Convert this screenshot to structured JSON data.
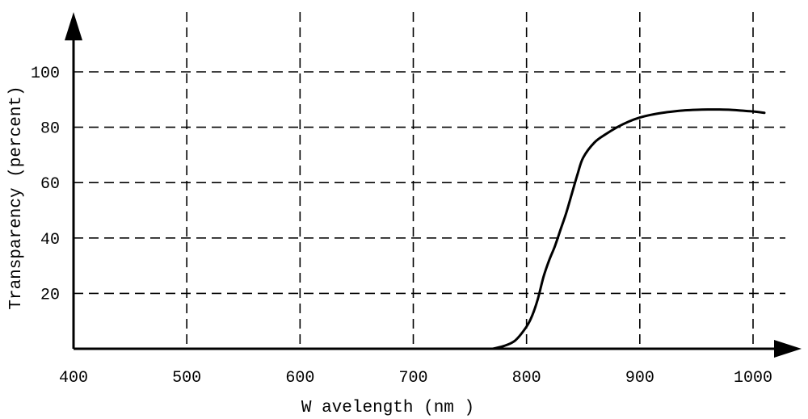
{
  "chart_data": {
    "type": "line",
    "title": "",
    "xlabel": "W avelength (nm )",
    "ylabel": "Transparency (percent)",
    "xlim": [
      400,
      1000
    ],
    "ylim": [
      0,
      100
    ],
    "xticks": [
      400,
      500,
      600,
      700,
      800,
      900,
      1000
    ],
    "xtick_labels": [
      "400",
      "500",
      "600",
      "700",
      "800",
      "900",
      "1000"
    ],
    "yticks": [
      20,
      40,
      60,
      80,
      100
    ],
    "ytick_labels": [
      "20",
      "40",
      "60",
      "80",
      "100"
    ],
    "grid": true,
    "series": [
      {
        "x": [
          770,
          780,
          790,
          800,
          805,
          810,
          815,
          820,
          825,
          830,
          835,
          840,
          845,
          850,
          860,
          870,
          880,
          890,
          900,
          910,
          920,
          930,
          940,
          950,
          960,
          970,
          980,
          990,
          1000,
          1010
        ],
        "y": [
          0,
          1,
          3,
          8,
          12,
          18,
          26,
          32,
          37,
          43,
          49,
          56,
          63,
          69,
          74.5,
          77.5,
          80,
          82,
          83.5,
          84.5,
          85.2,
          85.7,
          86.1,
          86.3,
          86.4,
          86.4,
          86.3,
          86,
          85.7,
          85.2
        ]
      }
    ]
  }
}
